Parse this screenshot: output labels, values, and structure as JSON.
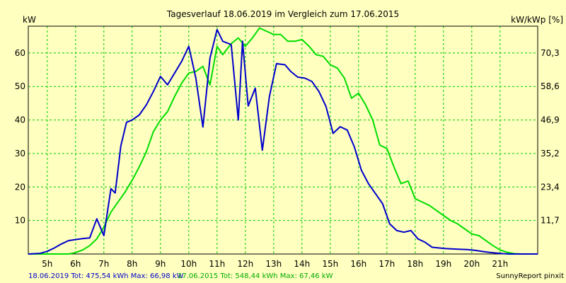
{
  "chart_data": {
    "type": "line",
    "title": "Tagesverlauf 18.06.2019 im Vergleich zum 17.06.2015",
    "ylabel_left": "kW",
    "ylabel_right": "kW/kWp [%]",
    "x_ticks": [
      "5h",
      "6h",
      "7h",
      "8h",
      "9h",
      "10h",
      "11h",
      "12h",
      "13h",
      "14h",
      "15h",
      "16h",
      "17h",
      "18h",
      "19h",
      "20h",
      "21h"
    ],
    "y_ticks_left": [
      "10",
      "20",
      "30",
      "40",
      "50",
      "60"
    ],
    "y_ticks_right": [
      "11,7",
      "23,4",
      "35,2",
      "46,9",
      "58,6",
      "70,3"
    ],
    "xlim": [
      4.33,
      22.33
    ],
    "ylim": [
      0,
      68
    ],
    "grid": true,
    "series": [
      {
        "name": "18.06.2019",
        "color": "#0000cc",
        "x": [
          4.33,
          4.75,
          5.0,
          5.25,
          5.5,
          5.75,
          6.0,
          6.25,
          6.5,
          6.75,
          7.0,
          7.25,
          7.4,
          7.6,
          7.8,
          8.0,
          8.25,
          8.5,
          8.75,
          9.0,
          9.25,
          9.5,
          9.75,
          10.0,
          10.25,
          10.5,
          10.75,
          11.0,
          11.2,
          11.5,
          11.75,
          11.9,
          12.1,
          12.35,
          12.6,
          12.85,
          13.1,
          13.4,
          13.6,
          13.85,
          14.1,
          14.35,
          14.6,
          14.85,
          15.1,
          15.35,
          15.6,
          15.85,
          16.1,
          16.35,
          16.6,
          16.85,
          17.1,
          17.35,
          17.6,
          17.85,
          18.1,
          18.35,
          18.6,
          18.85,
          19.1,
          19.35,
          19.6,
          19.85,
          20.1,
          20.35,
          20.6,
          20.85,
          21.1,
          21.35,
          21.6,
          21.85,
          22.33
        ],
        "values": [
          0.0,
          0.2,
          0.8,
          1.8,
          3.0,
          4.0,
          4.3,
          4.6,
          4.8,
          10.5,
          5.5,
          19.5,
          18.2,
          32.3,
          39.3,
          40.0,
          41.5,
          44.5,
          48.5,
          53.0,
          50.5,
          54.0,
          57.5,
          62.0,
          52.5,
          37.9,
          58.5,
          67.0,
          63.5,
          62.5,
          40.0,
          63.5,
          44.2,
          49.5,
          31.0,
          47.0,
          56.8,
          56.5,
          54.5,
          52.8,
          52.5,
          51.5,
          48.5,
          44.0,
          36.0,
          38.0,
          37.0,
          32.0,
          25.0,
          21.0,
          18.0,
          15.0,
          9.0,
          7.0,
          6.5,
          7.0,
          4.5,
          3.5,
          2.0,
          1.8,
          1.6,
          1.5,
          1.4,
          1.3,
          1.1,
          0.8,
          0.5,
          0.3,
          0.1,
          0.0,
          0.0,
          0.0,
          0.0
        ]
      },
      {
        "name": "17.06.2015",
        "color": "#00dd00",
        "x": [
          4.33,
          5.0,
          5.75,
          6.0,
          6.25,
          6.5,
          6.75,
          7.0,
          7.25,
          7.5,
          7.75,
          8.0,
          8.25,
          8.5,
          8.75,
          9.0,
          9.25,
          9.5,
          9.75,
          10.0,
          10.25,
          10.5,
          10.75,
          11.0,
          11.2,
          11.5,
          11.75,
          12.0,
          12.25,
          12.5,
          12.75,
          13.0,
          13.25,
          13.5,
          13.75,
          14.0,
          14.25,
          14.5,
          14.75,
          15.0,
          15.25,
          15.5,
          15.75,
          16.0,
          16.25,
          16.5,
          16.75,
          17.0,
          17.25,
          17.5,
          17.75,
          18.0,
          18.25,
          18.5,
          18.75,
          19.0,
          19.25,
          19.5,
          19.75,
          20.0,
          20.25,
          20.5,
          20.75,
          21.0,
          21.25,
          21.5,
          21.75,
          22.0,
          22.33
        ],
        "values": [
          0.0,
          0.0,
          0.0,
          0.4,
          1.2,
          2.5,
          4.5,
          8.0,
          12.5,
          15.5,
          18.5,
          22.0,
          26.0,
          30.5,
          36.5,
          40.0,
          42.5,
          47.0,
          51.0,
          54.0,
          54.5,
          56.0,
          50.5,
          62.0,
          59.5,
          62.8,
          64.5,
          62.0,
          64.5,
          67.46,
          66.5,
          65.5,
          65.5,
          63.5,
          63.5,
          64.0,
          62.0,
          59.5,
          59.0,
          56.5,
          55.5,
          52.5,
          46.5,
          48.0,
          44.5,
          40.0,
          32.5,
          31.5,
          26.0,
          21.0,
          21.8,
          16.5,
          15.5,
          14.5,
          13.0,
          11.5,
          10.0,
          9.0,
          7.5,
          6.0,
          5.5,
          4.0,
          2.5,
          1.2,
          0.5,
          0.1,
          0.0,
          0.0,
          0.0
        ]
      }
    ],
    "footer": {
      "s1_label": "18.06.2019 Tot: 475,54 kWh Max: 66,98 kW",
      "s2_label": "17.06.2015 Tot: 548,44 kWh Max: 67,46 kW",
      "credit": "SunnyReport pinxit"
    }
  }
}
